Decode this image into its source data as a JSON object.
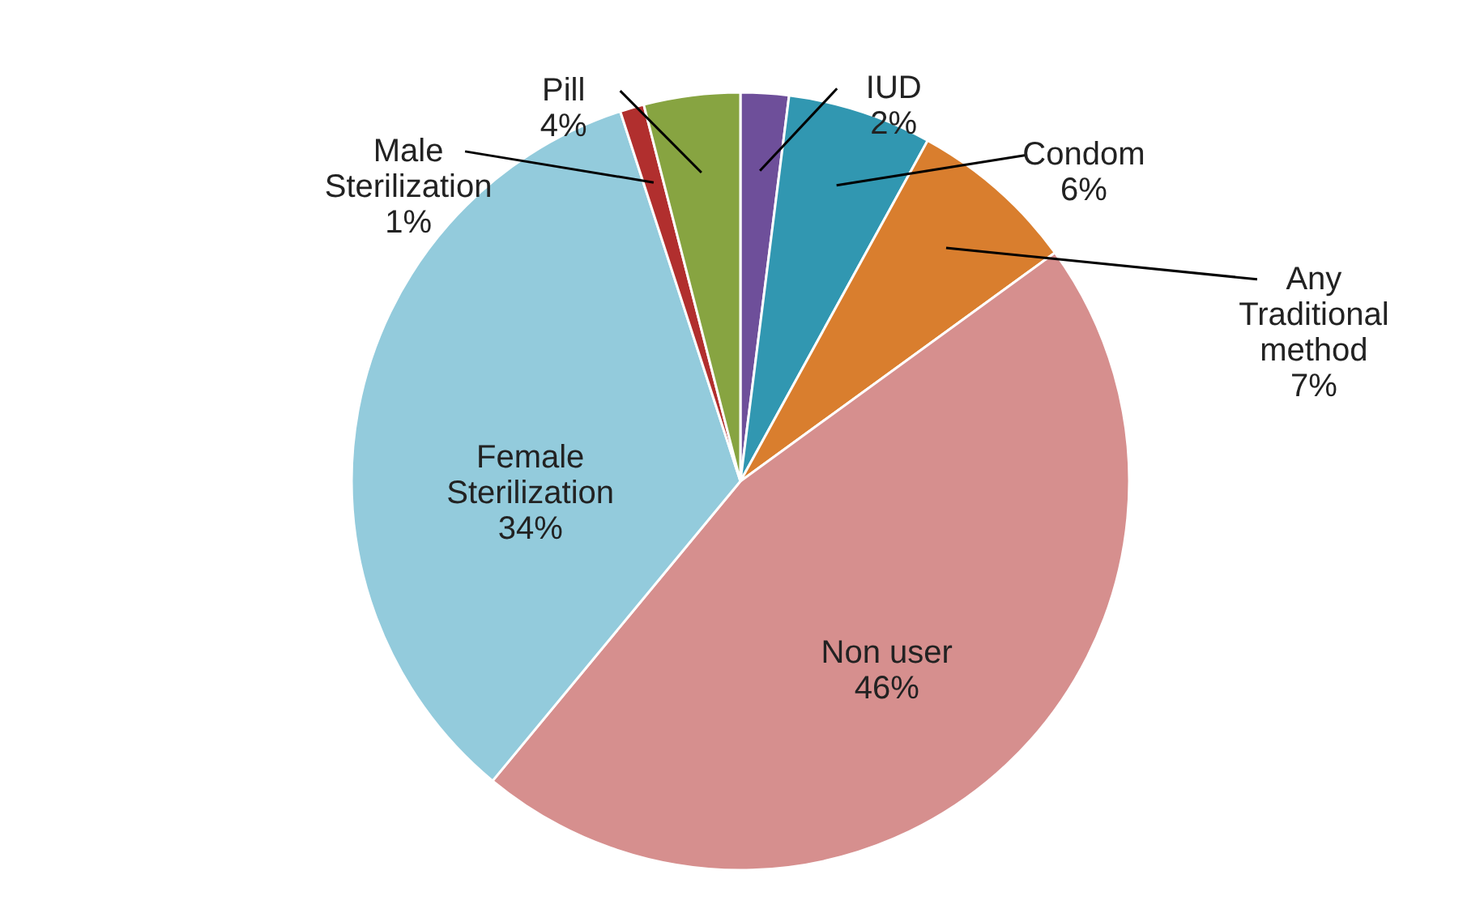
{
  "chart_data": {
    "type": "pie",
    "categories": [
      "IUD",
      "Condom",
      "Any Traditional method",
      "Non user",
      "Female Sterilization",
      "Male Sterilization",
      "Pill"
    ],
    "values": [
      2,
      6,
      7,
      46,
      34,
      1,
      4
    ],
    "value_labels": [
      "2%",
      "6%",
      "7%",
      "46%",
      "34%",
      "1%",
      "4%"
    ],
    "colors": [
      "#6e4f9a",
      "#3197b1",
      "#d97e2e",
      "#d68f8e",
      "#93cbdc",
      "#b12f2e",
      "#87a441"
    ]
  }
}
